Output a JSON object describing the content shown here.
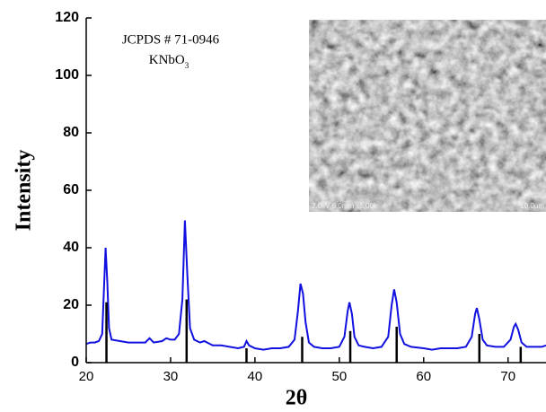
{
  "chart_data": {
    "type": "line",
    "x_label": "2θ",
    "y_label": "Intensity",
    "annotations": [
      "JCPDS # 71-0946",
      "KNbO",
      "3"
    ],
    "inset_texts": [
      "2.0kV 6.0mm x5.00k",
      "10.0um"
    ],
    "xlim": [
      20,
      74.5
    ],
    "ylim": [
      0,
      120
    ],
    "xticks": [
      20,
      30,
      40,
      50,
      60,
      70
    ],
    "yticks": [
      0,
      20,
      40,
      60,
      80,
      100,
      120
    ],
    "x": [
      20,
      20.5,
      21,
      21.5,
      21.9,
      22.1,
      22.3,
      22.5,
      22.7,
      23,
      24,
      25,
      26,
      27,
      27.5,
      28,
      29,
      29.5,
      30,
      30.5,
      31,
      31.4,
      31.7,
      32,
      32.3,
      32.8,
      33.5,
      34,
      35,
      36,
      37,
      38,
      38.7,
      39,
      39.3,
      40,
      41,
      42,
      43,
      44,
      44.7,
      45.1,
      45.4,
      45.7,
      46,
      46.4,
      47,
      48,
      49,
      50,
      50.6,
      51,
      51.2,
      51.5,
      51.8,
      52.3,
      53,
      54,
      55,
      55.8,
      56.2,
      56.5,
      56.8,
      57.2,
      57.7,
      58.5,
      60,
      61,
      62,
      63,
      64,
      65,
      65.7,
      66.1,
      66.3,
      66.6,
      67,
      67.5,
      68.5,
      69.5,
      70.3,
      70.7,
      70.9,
      71.2,
      71.6,
      72.2,
      73,
      74,
      74.5
    ],
    "series": [
      {
        "color": "#1010e0",
        "values": [
          6.5,
          7,
          7,
          7.5,
          10,
          25,
          40,
          28,
          12,
          8,
          7.5,
          7,
          7,
          7,
          8.5,
          7,
          7.5,
          8.5,
          8,
          8,
          10,
          22,
          49.5,
          30,
          12,
          8,
          7,
          7.5,
          6,
          6,
          5.5,
          5,
          5.5,
          7.5,
          6,
          5,
          4.5,
          5,
          5,
          5.5,
          8,
          18,
          27.5,
          24,
          14,
          7,
          5.5,
          5,
          5,
          5.5,
          9,
          18,
          21,
          17,
          9,
          6,
          5.5,
          5,
          5.5,
          9,
          20,
          25.5,
          21,
          10,
          6.5,
          5.5,
          5,
          4.5,
          5,
          5,
          5,
          5.5,
          9,
          17,
          19,
          15,
          8,
          6,
          5.5,
          5.5,
          8,
          12.5,
          13.5,
          11.5,
          7,
          5.5,
          5.5,
          5.5,
          6
        ]
      }
    ],
    "reference_peaks": {
      "color": "#000000",
      "x": [
        22.4,
        31.9,
        39.0,
        45.6,
        51.3,
        56.8,
        66.6,
        71.5
      ],
      "values": [
        21,
        22,
        5,
        9,
        11,
        12.5,
        10,
        5.5
      ]
    }
  }
}
